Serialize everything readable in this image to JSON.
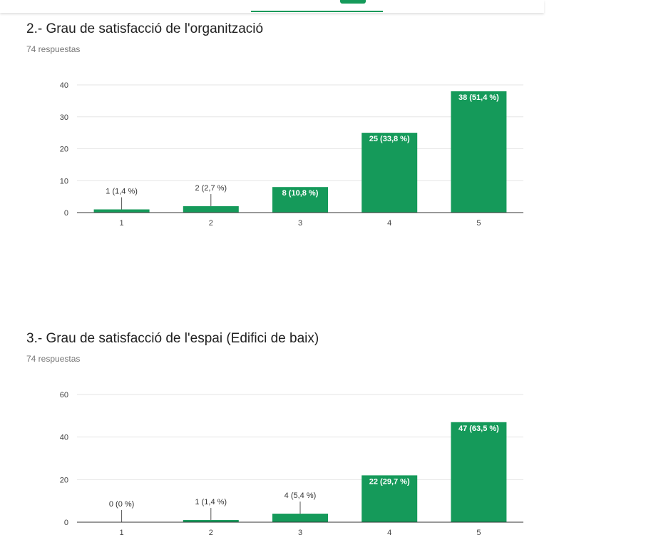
{
  "questions": [
    {
      "title": "2.- Grau de satisfacció de l'organització",
      "responses": "74 respuestas",
      "chart_data": {
        "type": "bar",
        "categories": [
          "1",
          "2",
          "3",
          "4",
          "5"
        ],
        "values": [
          1,
          2,
          8,
          25,
          38
        ],
        "data_labels": [
          "1 (1,4 %)",
          "2 (2,7 %)",
          "8 (10,8 %)",
          "25 (33,8 %)",
          "38 (51,4 %)"
        ],
        "yticks": [
          0,
          10,
          20,
          30,
          40
        ],
        "ylim": [
          0,
          40
        ],
        "grid": true,
        "bar_color": "#159a5a"
      }
    },
    {
      "title": "3.- Grau de satisfacció de l'espai (Edifici de baix)",
      "responses": "74 respuestas",
      "chart_data": {
        "type": "bar",
        "categories": [
          "1",
          "2",
          "3",
          "4",
          "5"
        ],
        "values": [
          0,
          1,
          4,
          22,
          47
        ],
        "data_labels": [
          "0 (0 %)",
          "1 (1,4 %)",
          "4 (5,4 %)",
          "22 (29,7 %)",
          "47 (63,5 %)"
        ],
        "yticks": [
          0,
          20,
          40,
          60
        ],
        "ylim": [
          0,
          60
        ],
        "grid": true,
        "bar_color": "#159a5a"
      }
    }
  ]
}
